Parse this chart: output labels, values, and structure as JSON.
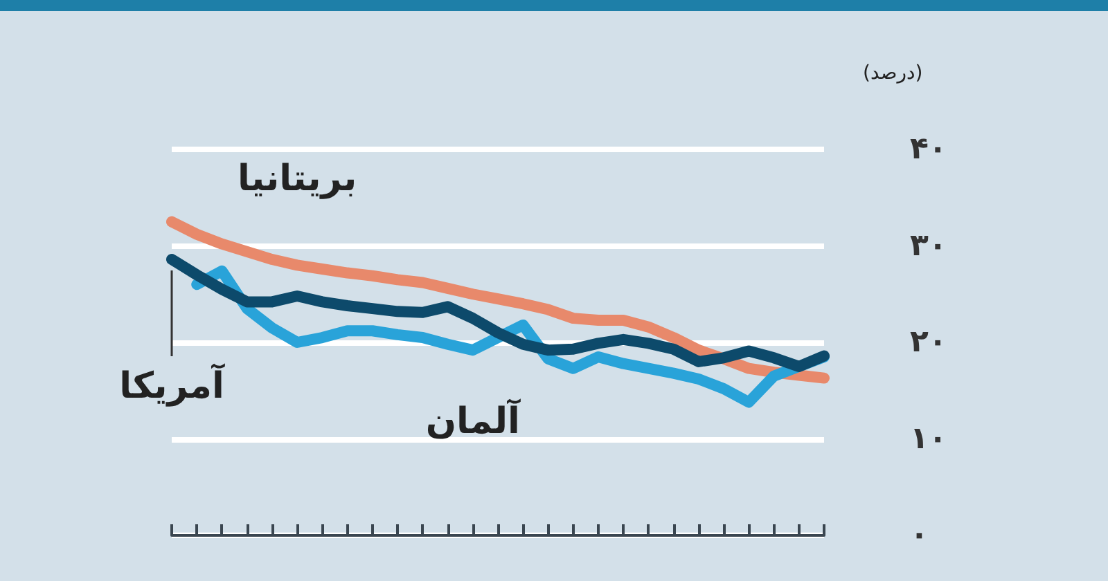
{
  "chart_data": {
    "type": "line",
    "ylabel": "(درصد)",
    "categories": [
      null,
      null,
      null,
      null,
      null,
      null,
      null,
      null,
      null,
      null,
      null,
      null,
      null,
      null,
      null,
      null,
      null,
      null,
      null,
      null,
      null,
      null,
      null,
      null,
      null,
      null,
      null
    ],
    "series": [
      {
        "name": "بریتانیا",
        "color": "#e8896b",
        "values": [
          32.5,
          31.2,
          30.2,
          29.4,
          28.6,
          28,
          27.6,
          27.2,
          26.9,
          26.5,
          26.2,
          25.6,
          25,
          24.5,
          24,
          23.4,
          22.5,
          22.3,
          22.3,
          21.6,
          20.5,
          19.2,
          18.3,
          17.3,
          16.9,
          16.6,
          16.3
        ]
      },
      {
        "name": "آلمان",
        "color": "#29a3d9",
        "values": [
          null,
          26,
          27.4,
          23.5,
          21.5,
          20,
          20.5,
          21.2,
          21.2,
          20.8,
          20.5,
          19.8,
          19.2,
          20.5,
          21.8,
          18.3,
          17.3,
          18.5,
          17.8,
          17.3,
          16.8,
          16.2,
          15.2,
          13.8,
          16.5,
          17.5,
          18.5
        ]
      },
      {
        "name": "آمریکا",
        "color": "#0d4a6b",
        "values": [
          28.6,
          27,
          25.5,
          24.2,
          24.2,
          24.8,
          24.2,
          23.8,
          23.5,
          23.2,
          23.1,
          23.7,
          22.5,
          21,
          19.8,
          19.2,
          19.3,
          19.9,
          20.3,
          19.9,
          19.3,
          18,
          18.4,
          19.1,
          18.4,
          17.5,
          18.6
        ]
      }
    ],
    "ylim": [
      0,
      40
    ],
    "yticks": [
      {
        "value": 0,
        "label": "۰"
      },
      {
        "value": 10,
        "label": "۱۰"
      },
      {
        "value": 20,
        "label": "۲۰"
      },
      {
        "value": 30,
        "label": "۳۰"
      },
      {
        "value": 40,
        "label": "۴۰"
      }
    ],
    "grid": "y",
    "legend": false,
    "marker": "none",
    "line_style": "solid"
  }
}
